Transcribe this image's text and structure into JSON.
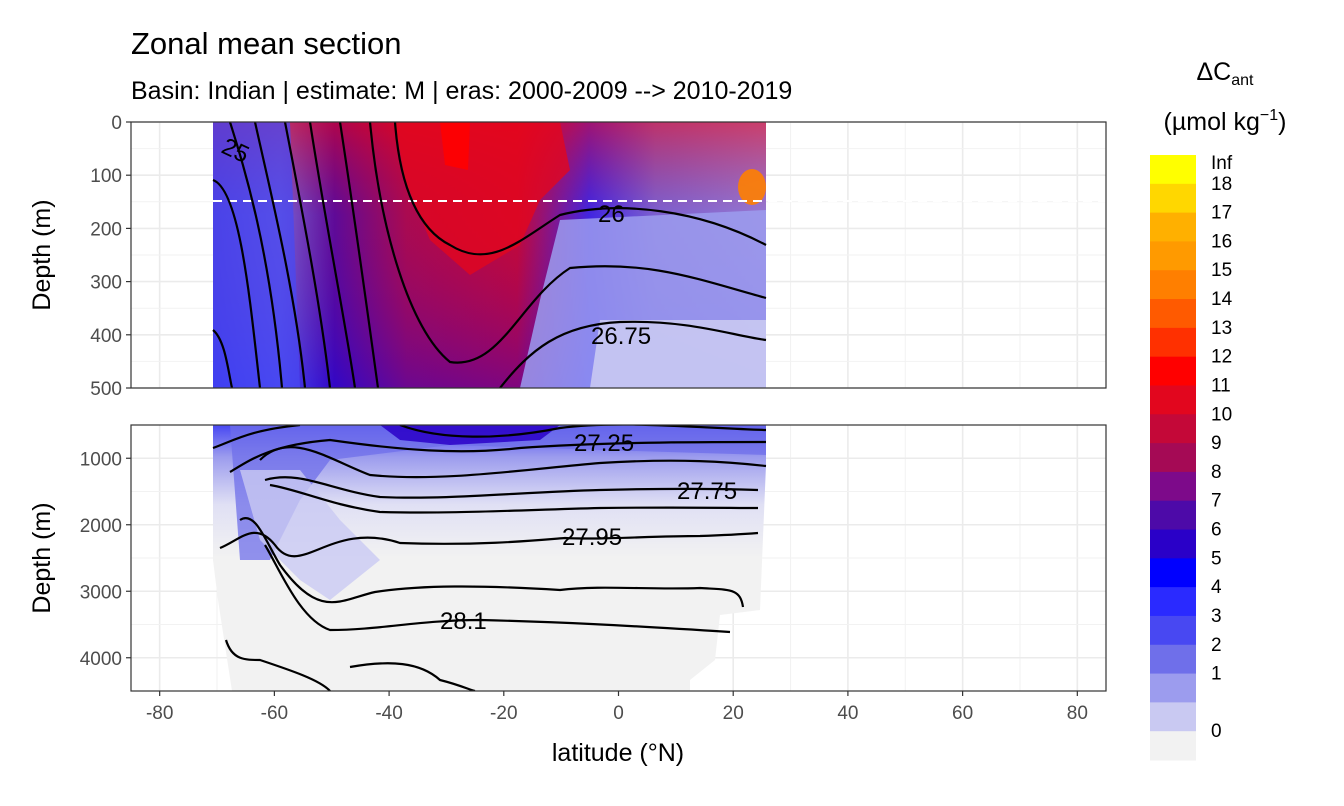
{
  "chart_data": {
    "type": "heatmap",
    "title": "Zonal mean section",
    "subtitle": "Basin: Indian | estimate: M  | eras: 2000-2009 --> 2010-2019",
    "xlabel": "latitude (°N)",
    "x_ticks": [
      -80,
      -60,
      -40,
      -20,
      0,
      20,
      40,
      60,
      80
    ],
    "xlim": [
      -85,
      85
    ],
    "data_lat_range": [
      -70,
      25
    ],
    "panels": [
      {
        "name": "upper",
        "ylabel": "Depth (m)",
        "ylim": [
          500,
          0
        ],
        "y_ticks": [
          0,
          100,
          200,
          300,
          400,
          500
        ],
        "reference_line_depth": 150,
        "contour_labels": [
          "25",
          "26",
          "26.75"
        ]
      },
      {
        "name": "lower",
        "ylabel": "Depth (m)",
        "ylim": [
          4500,
          500
        ],
        "y_ticks": [
          1000,
          2000,
          3000,
          4000
        ],
        "contour_labels": [
          "27.25",
          "27.75",
          "27.95",
          "28.1"
        ]
      }
    ],
    "legend": {
      "title_main": "ΔC",
      "title_sub": "ant",
      "unit_main": "(µmol kg",
      "unit_sup": "−1",
      "unit_close": ")",
      "position": "right",
      "labels": [
        "Inf",
        "18",
        "17",
        "16",
        "15",
        "14",
        "13",
        "12",
        "11",
        "10",
        "9",
        "8",
        "7",
        "6",
        "5",
        "4",
        "3",
        "2",
        "1",
        "0"
      ],
      "colors": [
        "#ffff00",
        "#ffd700",
        "#ffb000",
        "#ff9a00",
        "#ff7f00",
        "#ff5a00",
        "#ff3000",
        "#ff0000",
        "#e2061e",
        "#c40838",
        "#a50a55",
        "#7d0a8a",
        "#4d0aa8",
        "#2a00c8",
        "#0000ff",
        "#2a2aff",
        "#4848f2",
        "#6f6fea",
        "#9c9cee",
        "#c9c9f2",
        "#f2f2f2"
      ]
    }
  }
}
